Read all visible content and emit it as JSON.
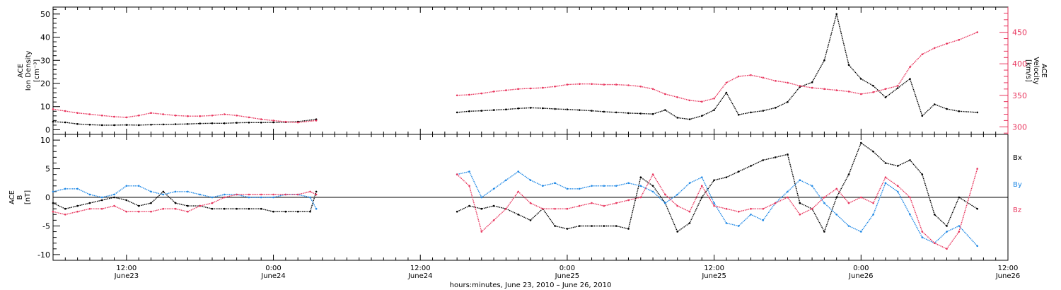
{
  "xaxis": {
    "title": "hours:minutes, June 23, 2010 – June 26, 2010",
    "range_hours": [
      6,
      84
    ],
    "ticks": [
      {
        "hour": 12,
        "time": "12:00",
        "date": "June23"
      },
      {
        "hour": 24,
        "time": "0:00",
        "date": "June24"
      },
      {
        "hour": 36,
        "time": "12:00",
        "date": "June24"
      },
      {
        "hour": 48,
        "time": "0:00",
        "date": "June25"
      },
      {
        "hour": 60,
        "time": "12:00",
        "date": "June25"
      },
      {
        "hour": 72,
        "time": "0:00",
        "date": "June26"
      },
      {
        "hour": 84,
        "time": "12:00",
        "date": "June26"
      }
    ]
  },
  "top_panel": {
    "left_label": [
      "ACE",
      "Ion Density",
      "[cm⁻³]"
    ],
    "right_label": [
      "ACE",
      "Velocity",
      "[km/s]"
    ],
    "left_ticks": [
      "0",
      "10",
      "20",
      "30",
      "40",
      "50"
    ],
    "right_ticks": [
      "300",
      "350",
      "400",
      "450"
    ]
  },
  "bottom_panel": {
    "left_label": [
      "ACE",
      "B",
      "[nT]"
    ],
    "left_ticks": [
      "-10",
      "-5",
      "0",
      "5",
      "10"
    ],
    "legend": [
      "Bx",
      "By",
      "Bz"
    ]
  },
  "colors": {
    "density": "#000000",
    "velocity": "#e8365e",
    "bx": "#000000",
    "by": "#1f88e5",
    "bz": "#e8365e",
    "axis": "#000000",
    "right_axis": "#e8365e"
  },
  "chart_data": [
    {
      "type": "scatter",
      "panel": "top",
      "xlabel": "hours:minutes, June 23, 2010 – June 26, 2010",
      "xlim": [
        6,
        84
      ],
      "ylabel": "ACE Ion Density [cm⁻³]",
      "ylim": [
        -2,
        53
      ],
      "y2label": "ACE Velocity [km/s]",
      "y2lim": [
        288,
        490
      ],
      "series": [
        {
          "name": "Ion Density",
          "axis": "left",
          "segments": [
            {
              "x": [
                6,
                7,
                8,
                9,
                10,
                11,
                12,
                13,
                14,
                15,
                16,
                17,
                18,
                19,
                20,
                21,
                22,
                23,
                24,
                25,
                26,
                27.5
              ],
              "y": [
                3.5,
                3.2,
                2.5,
                2.2,
                2.0,
                2.0,
                2.1,
                2.0,
                2.2,
                2.3,
                2.4,
                2.5,
                2.7,
                2.8,
                2.8,
                3.0,
                3.1,
                3.1,
                3.2,
                3.3,
                3.5,
                4.5
              ]
            },
            {
              "x": [
                39,
                40,
                41,
                42,
                43,
                44,
                45,
                46,
                47,
                48,
                49,
                50,
                51,
                52,
                53,
                54,
                55,
                56,
                57,
                58,
                59,
                60,
                61,
                62,
                63,
                64,
                65,
                66,
                67,
                68,
                69,
                70,
                71,
                72,
                73,
                74,
                75,
                76,
                77,
                78,
                79,
                80,
                81.5
              ],
              "y": [
                7.5,
                8.0,
                8.2,
                8.5,
                8.8,
                9.2,
                9.5,
                9.3,
                9.0,
                8.8,
                8.5,
                8.2,
                7.8,
                7.5,
                7.2,
                7.0,
                6.8,
                8.5,
                5.2,
                4.5,
                6.0,
                8.5,
                16.0,
                6.5,
                7.5,
                8.2,
                9.5,
                12.0,
                18.5,
                20.5,
                30.0,
                50.0,
                28.0,
                22.0,
                19.0,
                14.0,
                18.0,
                22.0,
                6.0,
                11.0,
                9.0,
                8.0,
                7.5
              ]
            }
          ]
        },
        {
          "name": "Velocity",
          "axis": "right",
          "segments": [
            {
              "x": [
                6,
                7,
                8,
                9,
                10,
                11,
                12,
                13,
                14,
                15,
                16,
                17,
                18,
                19,
                20,
                21,
                22,
                23,
                24,
                25,
                26,
                27.5
              ],
              "y": [
                328,
                325,
                322,
                320,
                318,
                316,
                315,
                318,
                322,
                320,
                318,
                317,
                317,
                318,
                320,
                318,
                315,
                312,
                310,
                308,
                307,
                310
              ]
            },
            {
              "x": [
                39,
                40,
                41,
                42,
                43,
                44,
                45,
                46,
                47,
                48,
                49,
                50,
                51,
                52,
                53,
                54,
                55,
                56,
                57,
                58,
                59,
                60,
                61,
                62,
                63,
                64,
                65,
                66,
                67,
                68,
                69,
                70,
                71,
                72,
                73,
                74,
                75,
                76,
                77,
                78,
                79,
                80,
                81.5
              ],
              "y": [
                350,
                351,
                353,
                356,
                358,
                360,
                361,
                362,
                364,
                367,
                368,
                368,
                367,
                367,
                366,
                364,
                360,
                352,
                347,
                342,
                340,
                345,
                370,
                380,
                382,
                378,
                373,
                370,
                365,
                362,
                360,
                358,
                356,
                352,
                355,
                360,
                365,
                395,
                415,
                425,
                432,
                438,
                450
              ]
            }
          ]
        }
      ]
    },
    {
      "type": "scatter",
      "panel": "bottom",
      "xlabel": "hours:minutes, June 23, 2010 – June 26, 2010",
      "xlim": [
        6,
        84
      ],
      "ylabel": "ACE B [nT]",
      "ylim": [
        -11,
        11
      ],
      "series": [
        {
          "name": "Bx",
          "segments": [
            {
              "x": [
                6,
                7,
                8,
                9,
                10,
                11,
                12,
                13,
                14,
                15,
                16,
                17,
                18,
                19,
                20,
                21,
                22,
                23,
                24,
                25,
                26,
                27,
                27.5
              ],
              "y": [
                -1.0,
                -2.0,
                -1.5,
                -1.0,
                -0.5,
                0.0,
                -0.5,
                -1.5,
                -1.0,
                1.0,
                -1.0,
                -1.5,
                -1.5,
                -2.0,
                -2.0,
                -2.0,
                -2.0,
                -2.0,
                -2.5,
                -2.5,
                -2.5,
                -2.5,
                1.0
              ]
            },
            {
              "x": [
                39,
                40,
                41,
                42,
                43,
                44,
                45,
                46,
                47,
                48,
                49,
                50,
                51,
                52,
                53,
                54,
                55,
                56,
                57,
                58,
                59,
                60,
                61,
                62,
                63,
                64,
                65,
                66,
                67,
                68,
                69,
                70,
                71,
                72,
                73,
                74,
                75,
                76,
                77,
                78,
                79,
                80,
                81.5
              ],
              "y": [
                -2.5,
                -1.5,
                -2.0,
                -1.5,
                -2.0,
                -3.0,
                -4.0,
                -2.0,
                -5.0,
                -5.5,
                -5.0,
                -5.0,
                -5.0,
                -5.0,
                -5.5,
                3.5,
                2.0,
                -1.0,
                -6.0,
                -4.5,
                0.0,
                3.0,
                3.5,
                4.5,
                5.5,
                6.5,
                7.0,
                7.5,
                -1.0,
                -2.0,
                -6.0,
                0.0,
                4.0,
                9.5,
                8.0,
                6.0,
                5.5,
                6.5,
                4.0,
                -3.0,
                -5.0,
                0.0,
                -2.0
              ]
            }
          ]
        },
        {
          "name": "By",
          "segments": [
            {
              "x": [
                6,
                7,
                8,
                9,
                10,
                11,
                12,
                13,
                14,
                15,
                16,
                17,
                18,
                19,
                20,
                21,
                22,
                23,
                24,
                25,
                26,
                27,
                27.5
              ],
              "y": [
                1.0,
                1.5,
                1.5,
                0.5,
                0.0,
                0.5,
                2.0,
                2.0,
                1.0,
                0.5,
                1.0,
                1.0,
                0.5,
                0.0,
                0.5,
                0.5,
                0.0,
                0.0,
                0.0,
                0.5,
                0.5,
                0.0,
                -2.0
              ]
            },
            {
              "x": [
                39,
                40,
                41,
                42,
                43,
                44,
                45,
                46,
                47,
                48,
                49,
                50,
                51,
                52,
                53,
                54,
                55,
                56,
                57,
                58,
                59,
                60,
                61,
                62,
                63,
                64,
                65,
                66,
                67,
                68,
                69,
                70,
                71,
                72,
                73,
                74,
                75,
                76,
                77,
                78,
                79,
                80,
                81.5
              ],
              "y": [
                4.0,
                4.5,
                0.0,
                1.5,
                3.0,
                4.5,
                3.0,
                2.0,
                2.5,
                1.5,
                1.5,
                2.0,
                2.0,
                2.0,
                2.5,
                2.0,
                1.0,
                -1.0,
                0.5,
                2.5,
                3.5,
                -1.0,
                -4.5,
                -5.0,
                -3.0,
                -4.0,
                -1.0,
                1.0,
                3.0,
                2.0,
                -1.0,
                -3.0,
                -5.0,
                -6.0,
                -3.0,
                2.5,
                1.0,
                -3.0,
                -7.0,
                -8.0,
                -6.0,
                -5.0,
                -8.5
              ]
            }
          ]
        },
        {
          "name": "Bz",
          "segments": [
            {
              "x": [
                6,
                7,
                8,
                9,
                10,
                11,
                12,
                13,
                14,
                15,
                16,
                17,
                18,
                19,
                20,
                21,
                22,
                23,
                24,
                25,
                26,
                27,
                27.5
              ],
              "y": [
                -2.5,
                -3.0,
                -2.5,
                -2.0,
                -2.0,
                -1.5,
                -2.5,
                -2.5,
                -2.5,
                -2.0,
                -2.0,
                -2.5,
                -1.5,
                -1.0,
                0.0,
                0.5,
                0.5,
                0.5,
                0.5,
                0.5,
                0.5,
                1.0,
                0.5
              ]
            },
            {
              "x": [
                39,
                40,
                41,
                42,
                43,
                44,
                45,
                46,
                47,
                48,
                49,
                50,
                51,
                52,
                53,
                54,
                55,
                56,
                57,
                58,
                59,
                60,
                61,
                62,
                63,
                64,
                65,
                66,
                67,
                68,
                69,
                70,
                71,
                72,
                73,
                74,
                75,
                76,
                77,
                78,
                79,
                80,
                81.5
              ],
              "y": [
                4.0,
                2.0,
                -6.0,
                -4.0,
                -2.0,
                1.0,
                -1.0,
                -2.0,
                -2.0,
                -2.0,
                -1.5,
                -1.0,
                -1.5,
                -1.0,
                -0.5,
                0.0,
                4.0,
                0.5,
                -1.5,
                -2.5,
                2.0,
                -1.5,
                -2.0,
                -2.5,
                -2.0,
                -2.0,
                -1.0,
                0.0,
                -3.0,
                -2.0,
                0.0,
                1.5,
                -1.0,
                0.0,
                -1.0,
                3.5,
                2.0,
                0.0,
                -6.0,
                -8.0,
                -9.0,
                -6.0,
                5.0
              ]
            }
          ]
        }
      ]
    }
  ]
}
